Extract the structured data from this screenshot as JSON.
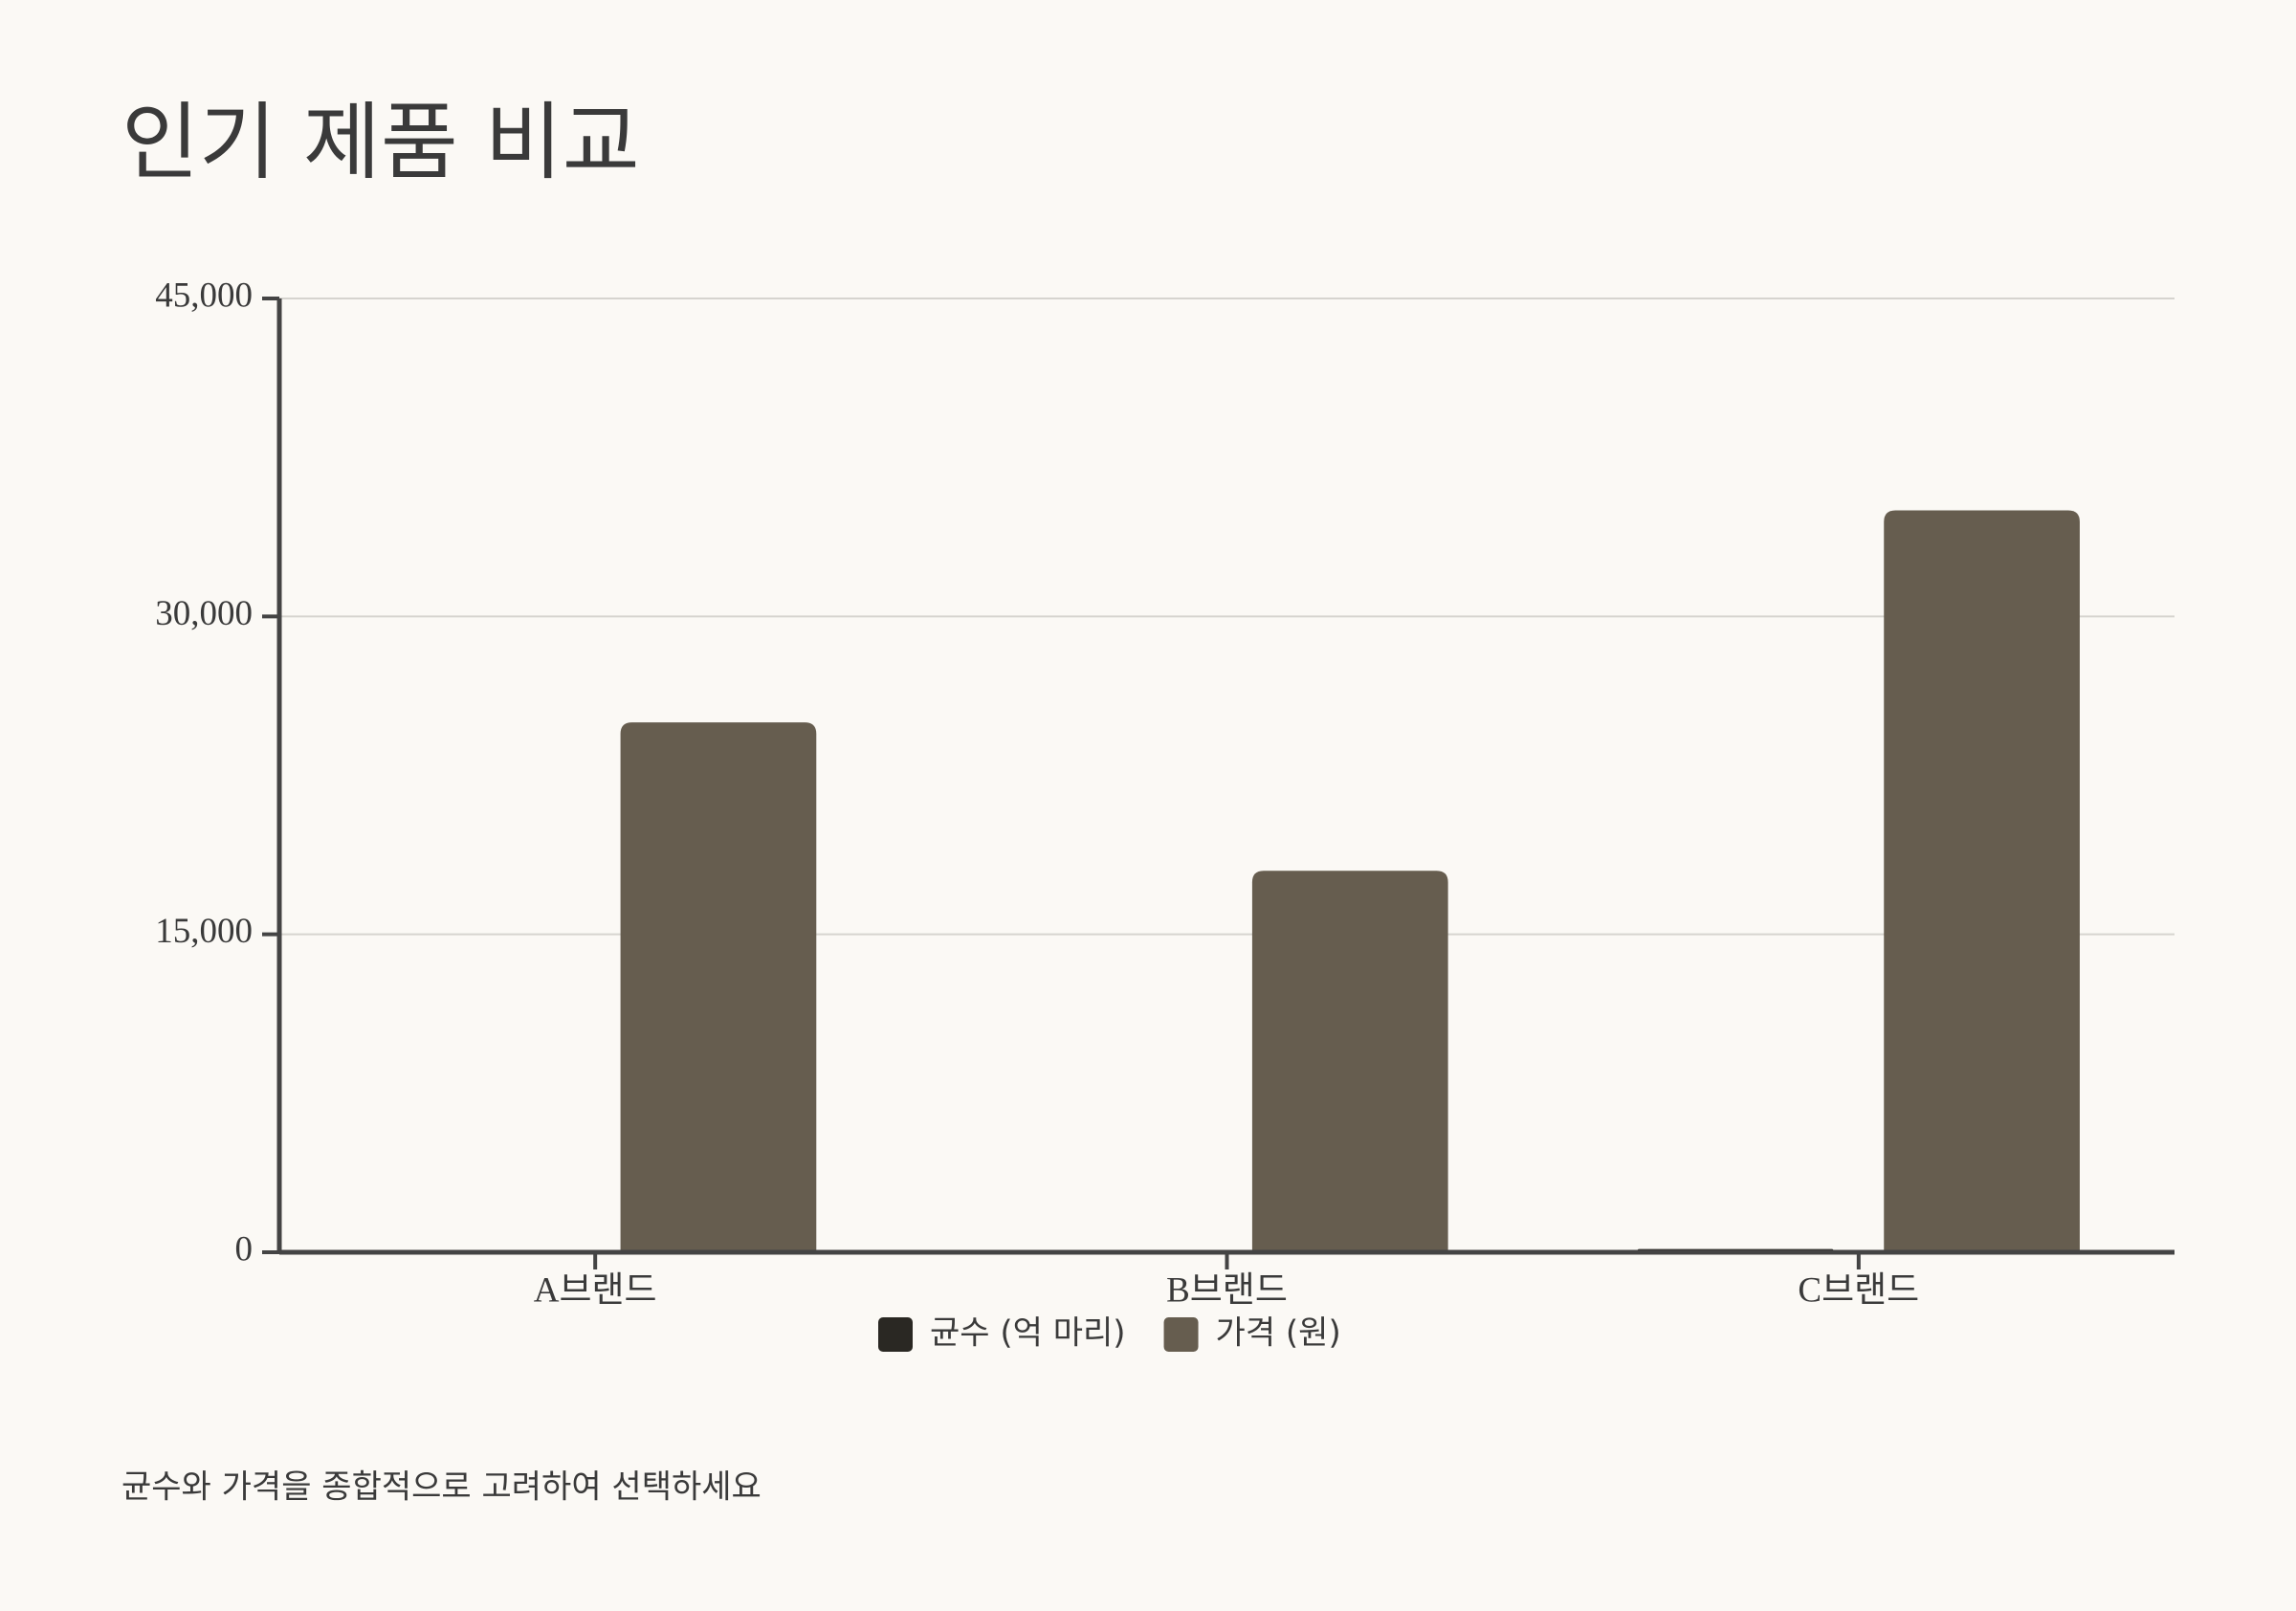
{
  "chart_data": {
    "type": "bar",
    "title": "인기 제품 비교",
    "categories": [
      "A브랜드",
      "B브랜드",
      "C브랜드"
    ],
    "series": [
      {
        "name": "균수 (억 마리)",
        "color": "#2a2823",
        "values": [
          10,
          15,
          150
        ]
      },
      {
        "name": "가격 (원)",
        "color": "#665d4f",
        "values": [
          25000,
          18000,
          35000
        ]
      }
    ],
    "ylim": [
      0,
      45000
    ],
    "yticks": [
      0,
      {
        "value": 15000,
        "label": "15,000"
      },
      {
        "value": 30000,
        "label": "30,000"
      },
      {
        "value": 45000,
        "label": "45,000"
      }
    ],
    "grid": true,
    "annotation": "균수와 가격을 종합적으로 고려하여 선택하세요"
  }
}
